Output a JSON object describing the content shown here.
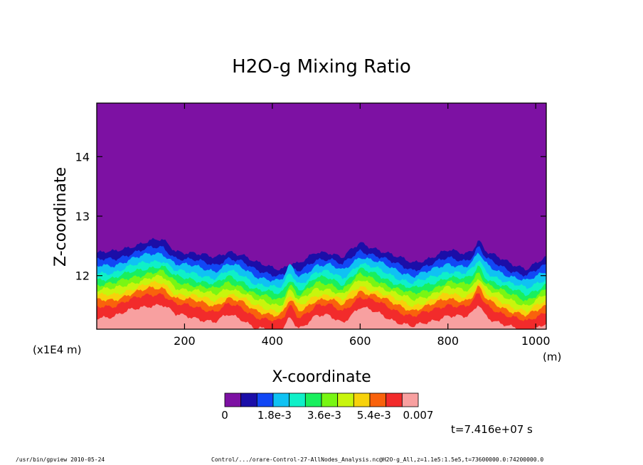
{
  "chart_data": {
    "type": "heatmap",
    "title": "H2O-g Mixing Ratio",
    "xlabel": "X-coordinate",
    "ylabel": "Z-coordinate",
    "x_unit": "(m)",
    "y_scale_note": "(x1E4 m)",
    "xlim": [
      0,
      1024
    ],
    "ylim": [
      11.1,
      14.9
    ],
    "x_ticks": [
      200,
      400,
      600,
      800,
      1000
    ],
    "y_ticks": [
      12,
      13,
      14
    ],
    "time_label": "t=7.416e+07 s",
    "colorbar": {
      "levels": [
        0,
        0.0006,
        0.0012,
        0.0018,
        0.0024,
        0.003,
        0.0036,
        0.0042,
        0.0048,
        0.0054,
        0.006,
        0.0066,
        0.007
      ],
      "colors": [
        "#7d11a3",
        "#1b0ea8",
        "#1147f5",
        "#0fc2f3",
        "#0ff0c8",
        "#19ef5e",
        "#78f614",
        "#c8f50d",
        "#f7d20b",
        "#f9620c",
        "#f22b2b",
        "#f8a0a0"
      ],
      "tick_labels": [
        "0",
        "1.8e-3",
        "3.6e-3",
        "5.4e-3",
        "0.007"
      ]
    },
    "boundary_profile": {
      "x": [
        0,
        40,
        80,
        120,
        150,
        180,
        220,
        270,
        300,
        330,
        360,
        400,
        430,
        460,
        500,
        530,
        560,
        600,
        640,
        680,
        720,
        760,
        800,
        840,
        870,
        900,
        940,
        980,
        1024
      ],
      "z_top": [
        12.38,
        12.4,
        12.5,
        12.58,
        12.6,
        12.42,
        12.38,
        12.3,
        12.42,
        12.35,
        12.22,
        12.15,
        12.1,
        12.18,
        12.4,
        12.4,
        12.3,
        12.55,
        12.45,
        12.32,
        12.22,
        12.3,
        12.42,
        12.38,
        12.48,
        12.35,
        12.22,
        12.12,
        12.3
      ]
    }
  },
  "footer": {
    "program": "/usr/bin/gpview   2010-05-24",
    "source": "Control/.../orare-Control-27-AllNodes_Analysis.nc@H2O-g_All,z=1.1e5:1.5e5,t=73600000.0:74200000.0"
  }
}
